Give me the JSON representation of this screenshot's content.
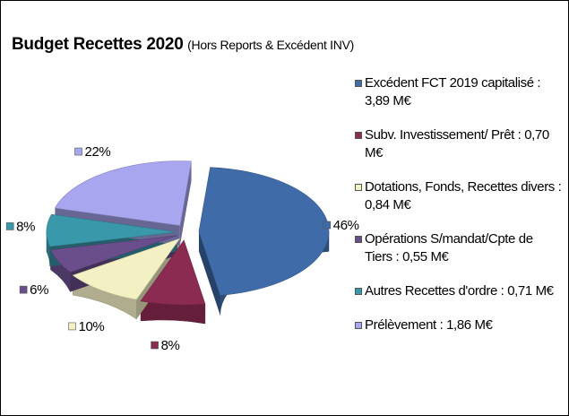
{
  "chart_data": {
    "type": "pie",
    "title": "Budget  Recettes 2020",
    "subtitle": "(Hors Reports & Excédent INV)",
    "categories": [
      "Excédent FCT 2019 capitalisé : 3,89 M€",
      "Subv. Investissement/ Prêt : 0,70 M€",
      "Dotations, Fonds, Recettes divers : 0,84 M€",
      "Opérations S/mandat/Cpte de Tiers : 0,55 M€",
      "Autres Recettes d'ordre : 0,71 M€",
      "Prélèvement : 1,86 M€"
    ],
    "values": [
      46,
      8,
      10,
      6,
      8,
      22
    ],
    "value_labels": [
      "46%",
      "8%",
      "10%",
      "6%",
      "8%",
      "22%"
    ],
    "colors": [
      "#3f6ba8",
      "#8c2b52",
      "#f3f0c4",
      "#6a4e8c",
      "#3a98ab",
      "#a7a6ee"
    ],
    "legend": "right"
  }
}
